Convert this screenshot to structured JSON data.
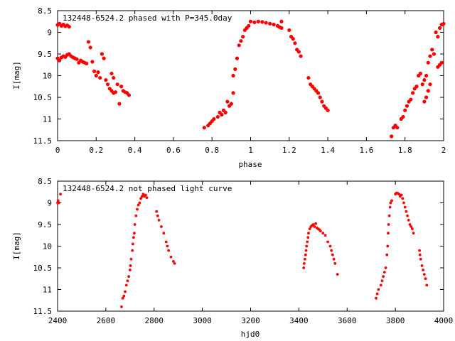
{
  "colors": {
    "points": "#ff0000",
    "axis": "#000000",
    "background": "#ffffff"
  },
  "chart_data": [
    {
      "type": "scatter",
      "title": "132448-6524.2 phased with P=345.0day",
      "xlabel": "phase",
      "ylabel": "I[mag]",
      "xlim": [
        0,
        2
      ],
      "ylim": [
        8.5,
        11.5
      ],
      "y_inverted": true,
      "xticks": [
        "0",
        "0.2",
        "0.4",
        "0.6",
        "0.8",
        "1",
        "1.2",
        "1.4",
        "1.6",
        "1.8",
        "2"
      ],
      "yticks": [
        "8.5",
        "9",
        "9.5",
        "10",
        "10.5",
        "11",
        "11.5"
      ],
      "grid": false,
      "legend": "none",
      "series": [
        {
          "points": [
            [
              0.0,
              8.83
            ],
            [
              0.01,
              8.8
            ],
            [
              0.02,
              8.85
            ],
            [
              0.03,
              8.82
            ],
            [
              0.04,
              8.86
            ],
            [
              0.05,
              8.84
            ],
            [
              0.06,
              8.87
            ],
            [
              0.0,
              9.6
            ],
            [
              0.01,
              9.65
            ],
            [
              0.02,
              9.58
            ],
            [
              0.03,
              9.55
            ],
            [
              0.04,
              9.57
            ],
            [
              0.05,
              9.52
            ],
            [
              0.06,
              9.5
            ],
            [
              0.07,
              9.55
            ],
            [
              0.08,
              9.58
            ],
            [
              0.09,
              9.6
            ],
            [
              0.1,
              9.62
            ],
            [
              0.11,
              9.7
            ],
            [
              0.12,
              9.65
            ],
            [
              0.13,
              9.68
            ],
            [
              0.14,
              9.7
            ],
            [
              0.15,
              9.72
            ],
            [
              0.16,
              9.22
            ],
            [
              0.17,
              9.35
            ],
            [
              0.18,
              9.68
            ],
            [
              0.19,
              9.9
            ],
            [
              0.2,
              10.0
            ],
            [
              0.21,
              9.92
            ],
            [
              0.22,
              10.05
            ],
            [
              0.23,
              9.5
            ],
            [
              0.24,
              9.6
            ],
            [
              0.25,
              10.1
            ],
            [
              0.26,
              10.2
            ],
            [
              0.27,
              10.3
            ],
            [
              0.28,
              10.35
            ],
            [
              0.29,
              10.4
            ],
            [
              0.3,
              10.38
            ],
            [
              0.28,
              9.95
            ],
            [
              0.29,
              10.05
            ],
            [
              0.31,
              10.2
            ],
            [
              0.32,
              10.65
            ],
            [
              0.33,
              10.25
            ],
            [
              0.34,
              10.35
            ],
            [
              0.35,
              10.38
            ],
            [
              0.36,
              10.4
            ],
            [
              0.37,
              10.45
            ],
            [
              0.76,
              11.2
            ],
            [
              0.78,
              11.15
            ],
            [
              0.79,
              11.1
            ],
            [
              0.8,
              11.05
            ],
            [
              0.81,
              11.0
            ],
            [
              0.83,
              10.95
            ],
            [
              0.84,
              10.85
            ],
            [
              0.85,
              10.9
            ],
            [
              0.86,
              10.8
            ],
            [
              0.87,
              10.85
            ],
            [
              0.88,
              10.6
            ],
            [
              0.89,
              10.7
            ],
            [
              0.9,
              10.65
            ],
            [
              0.91,
              10.4
            ],
            [
              0.91,
              10.0
            ],
            [
              0.92,
              9.85
            ],
            [
              0.93,
              9.6
            ],
            [
              0.94,
              9.3
            ],
            [
              0.95,
              9.2
            ],
            [
              0.96,
              9.1
            ],
            [
              0.97,
              8.95
            ],
            [
              0.98,
              8.9
            ],
            [
              0.99,
              8.85
            ],
            [
              1.0,
              8.75
            ],
            [
              1.02,
              8.77
            ],
            [
              1.04,
              8.75
            ],
            [
              1.06,
              8.76
            ],
            [
              1.08,
              8.78
            ],
            [
              1.1,
              8.8
            ],
            [
              1.12,
              8.82
            ],
            [
              1.14,
              8.85
            ],
            [
              1.15,
              8.88
            ],
            [
              1.16,
              8.9
            ],
            [
              1.16,
              8.75
            ],
            [
              1.2,
              8.95
            ],
            [
              1.21,
              9.1
            ],
            [
              1.22,
              9.15
            ],
            [
              1.23,
              9.25
            ],
            [
              1.24,
              9.4
            ],
            [
              1.25,
              9.45
            ],
            [
              1.26,
              9.55
            ],
            [
              1.3,
              10.05
            ],
            [
              1.31,
              10.2
            ],
            [
              1.32,
              10.25
            ],
            [
              1.33,
              10.3
            ],
            [
              1.34,
              10.35
            ],
            [
              1.35,
              10.4
            ],
            [
              1.36,
              10.5
            ],
            [
              1.37,
              10.6
            ],
            [
              1.38,
              10.7
            ],
            [
              1.39,
              10.75
            ],
            [
              1.4,
              10.8
            ],
            [
              1.73,
              11.4
            ],
            [
              1.74,
              11.2
            ],
            [
              1.75,
              11.15
            ],
            [
              1.76,
              11.2
            ],
            [
              1.78,
              11.0
            ],
            [
              1.79,
              10.95
            ],
            [
              1.8,
              10.8
            ],
            [
              1.81,
              10.7
            ],
            [
              1.82,
              10.6
            ],
            [
              1.83,
              10.55
            ],
            [
              1.84,
              10.4
            ],
            [
              1.85,
              10.3
            ],
            [
              1.86,
              10.25
            ],
            [
              1.87,
              10.0
            ],
            [
              1.88,
              9.95
            ],
            [
              1.89,
              10.2
            ],
            [
              1.9,
              10.1
            ],
            [
              1.91,
              10.0
            ],
            [
              1.9,
              10.6
            ],
            [
              1.91,
              10.5
            ],
            [
              1.92,
              10.35
            ],
            [
              1.93,
              10.2
            ],
            [
              1.92,
              9.7
            ],
            [
              1.93,
              9.55
            ],
            [
              1.94,
              9.4
            ],
            [
              1.95,
              9.5
            ],
            [
              1.96,
              9.0
            ],
            [
              1.97,
              9.1
            ],
            [
              1.98,
              8.9
            ],
            [
              1.99,
              8.82
            ],
            [
              2.0,
              8.8
            ],
            [
              1.97,
              9.8
            ],
            [
              1.98,
              9.75
            ],
            [
              1.99,
              9.7
            ]
          ]
        }
      ]
    },
    {
      "type": "scatter",
      "title": "132448-6524.2 not phased light curve",
      "xlabel": "hjd0",
      "ylabel": "I[mag]",
      "xlim": [
        2400,
        4000
      ],
      "ylim": [
        8.5,
        11.5
      ],
      "y_inverted": true,
      "xticks": [
        "2400",
        "2600",
        "2800",
        "3000",
        "3200",
        "3400",
        "3600",
        "3800",
        "4000"
      ],
      "yticks": [
        "8.5",
        "9",
        "9.5",
        "10",
        "10.5",
        "11",
        "11.5"
      ],
      "grid": false,
      "legend": "none",
      "series": [
        {
          "points": [
            [
              2400,
              9.0
            ],
            [
              2402,
              8.95
            ],
            [
              2405,
              9.0
            ],
            [
              2412,
              8.8
            ],
            [
              2665,
              11.4
            ],
            [
              2670,
              11.2
            ],
            [
              2675,
              11.15
            ],
            [
              2680,
              11.05
            ],
            [
              2685,
              10.9
            ],
            [
              2690,
              10.8
            ],
            [
              2695,
              10.7
            ],
            [
              2700,
              10.55
            ],
            [
              2702,
              10.45
            ],
            [
              2705,
              10.3
            ],
            [
              2710,
              10.1
            ],
            [
              2712,
              9.95
            ],
            [
              2715,
              9.8
            ],
            [
              2718,
              9.7
            ],
            [
              2720,
              9.5
            ],
            [
              2725,
              9.3
            ],
            [
              2730,
              9.15
            ],
            [
              2735,
              9.05
            ],
            [
              2740,
              9.0
            ],
            [
              2745,
              8.9
            ],
            [
              2750,
              8.85
            ],
            [
              2755,
              8.8
            ],
            [
              2760,
              8.85
            ],
            [
              2765,
              8.82
            ],
            [
              2770,
              8.88
            ],
            [
              2810,
              9.2
            ],
            [
              2815,
              9.3
            ],
            [
              2820,
              9.4
            ],
            [
              2830,
              9.55
            ],
            [
              2840,
              9.7
            ],
            [
              2850,
              9.9
            ],
            [
              2855,
              10.0
            ],
            [
              2860,
              10.1
            ],
            [
              2870,
              10.25
            ],
            [
              2880,
              10.35
            ],
            [
              2885,
              10.4
            ],
            [
              3420,
              10.5
            ],
            [
              3422,
              10.4
            ],
            [
              3425,
              10.3
            ],
            [
              3428,
              10.2
            ],
            [
              3430,
              10.1
            ],
            [
              3432,
              10.0
            ],
            [
              3435,
              9.9
            ],
            [
              3438,
              9.8
            ],
            [
              3440,
              9.7
            ],
            [
              3445,
              9.6
            ],
            [
              3450,
              9.55
            ],
            [
              3455,
              9.52
            ],
            [
              3460,
              9.5
            ],
            [
              3465,
              9.55
            ],
            [
              3470,
              9.48
            ],
            [
              3475,
              9.58
            ],
            [
              3480,
              9.6
            ],
            [
              3485,
              9.62
            ],
            [
              3490,
              9.65
            ],
            [
              3500,
              9.7
            ],
            [
              3510,
              9.75
            ],
            [
              3520,
              9.9
            ],
            [
              3530,
              10.0
            ],
            [
              3535,
              10.1
            ],
            [
              3540,
              10.2
            ],
            [
              3545,
              10.3
            ],
            [
              3550,
              10.4
            ],
            [
              3560,
              10.65
            ],
            [
              3720,
              11.2
            ],
            [
              3725,
              11.1
            ],
            [
              3730,
              11.0
            ],
            [
              3740,
              10.9
            ],
            [
              3745,
              10.8
            ],
            [
              3750,
              10.7
            ],
            [
              3755,
              10.6
            ],
            [
              3760,
              10.5
            ],
            [
              3765,
              10.2
            ],
            [
              3768,
              10.0
            ],
            [
              3770,
              9.7
            ],
            [
              3772,
              9.5
            ],
            [
              3775,
              9.3
            ],
            [
              3778,
              9.1
            ],
            [
              3780,
              9.0
            ],
            [
              3785,
              8.95
            ],
            [
              3800,
              8.8
            ],
            [
              3805,
              8.77
            ],
            [
              3810,
              8.78
            ],
            [
              3815,
              8.8
            ],
            [
              3820,
              8.85
            ],
            [
              3825,
              8.82
            ],
            [
              3830,
              8.9
            ],
            [
              3835,
              9.0
            ],
            [
              3840,
              9.1
            ],
            [
              3845,
              9.2
            ],
            [
              3850,
              9.3
            ],
            [
              3855,
              9.4
            ],
            [
              3860,
              9.5
            ],
            [
              3865,
              9.55
            ],
            [
              3870,
              9.6
            ],
            [
              3875,
              9.7
            ],
            [
              3900,
              10.1
            ],
            [
              3902,
              10.2
            ],
            [
              3905,
              10.3
            ],
            [
              3910,
              10.45
            ],
            [
              3915,
              10.55
            ],
            [
              3920,
              10.65
            ],
            [
              3925,
              10.75
            ],
            [
              3930,
              10.9
            ]
          ]
        }
      ]
    }
  ]
}
